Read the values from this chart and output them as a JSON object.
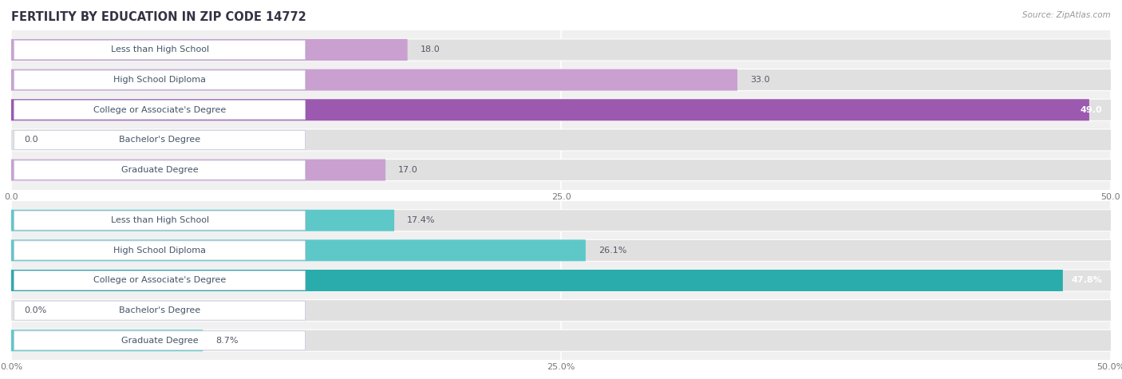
{
  "title": "FERTILITY BY EDUCATION IN ZIP CODE 14772",
  "source": "Source: ZipAtlas.com",
  "top_section": {
    "categories": [
      "Less than High School",
      "High School Diploma",
      "College or Associate's Degree",
      "Bachelor's Degree",
      "Graduate Degree"
    ],
    "values": [
      18.0,
      33.0,
      49.0,
      0.0,
      17.0
    ],
    "xlim": [
      0,
      50
    ],
    "xticks": [
      0.0,
      25.0,
      50.0
    ],
    "xtick_labels": [
      "0.0",
      "25.0",
      "50.0"
    ],
    "bar_color": "#c9a0d0",
    "bar_color_max": "#9b59b0",
    "value_labels": [
      "18.0",
      "33.0",
      "49.0",
      "0.0",
      "17.0"
    ]
  },
  "bottom_section": {
    "categories": [
      "Less than High School",
      "High School Diploma",
      "College or Associate's Degree",
      "Bachelor's Degree",
      "Graduate Degree"
    ],
    "values": [
      17.4,
      26.1,
      47.8,
      0.0,
      8.7
    ],
    "xlim": [
      0,
      50
    ],
    "xticks": [
      0.0,
      25.0,
      50.0
    ],
    "xtick_labels": [
      "0.0%",
      "25.0%",
      "50.0%"
    ],
    "bar_color": "#5ec8c8",
    "bar_color_max": "#2aacac",
    "value_labels": [
      "17.4%",
      "26.1%",
      "47.8%",
      "0.0%",
      "8.7%"
    ]
  },
  "bg_color": "#f0f0f0",
  "bar_bg_color": "#e0e0e0",
  "label_box_color": "#ffffff",
  "label_text_color": "#445566",
  "title_color": "#333344",
  "source_color": "#999999",
  "bar_height": 0.68,
  "label_fontsize": 8.0,
  "value_fontsize": 8.0,
  "title_fontsize": 10.5,
  "source_fontsize": 7.5
}
